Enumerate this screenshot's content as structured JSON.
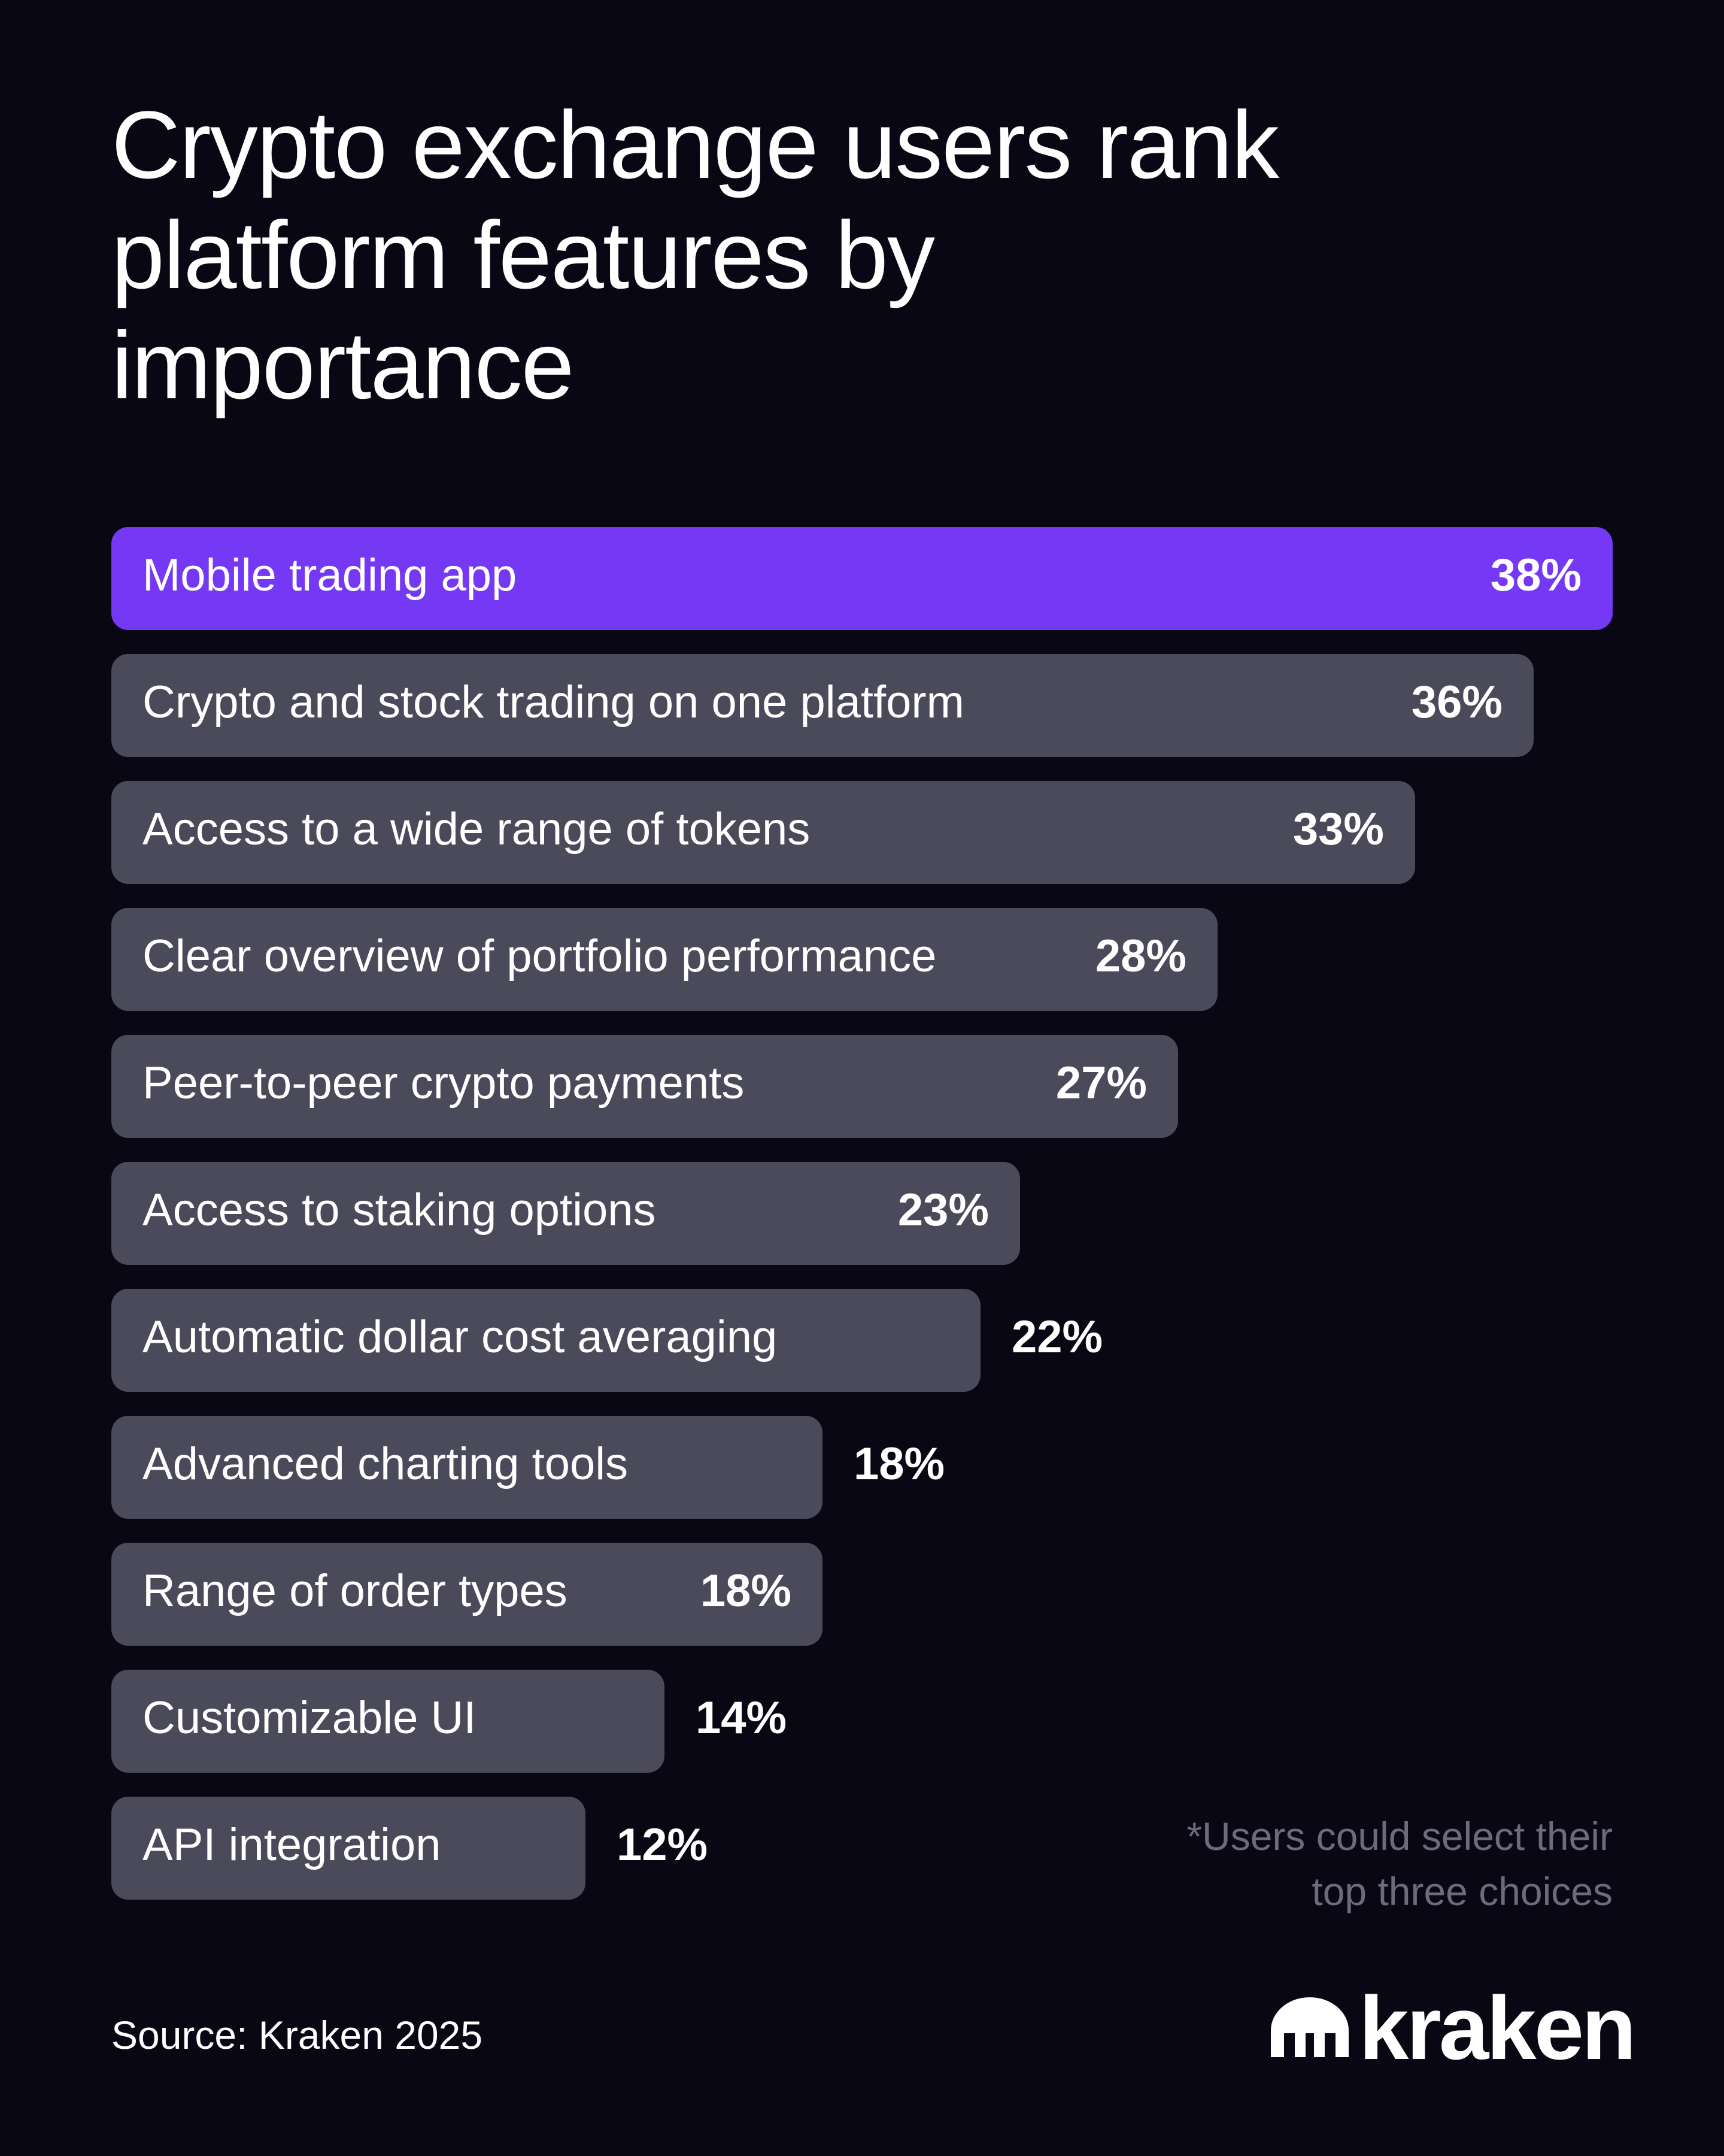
{
  "chart_data": {
    "type": "bar",
    "orientation": "horizontal",
    "title": "Crypto exchange users rank platform features by importance",
    "categories": [
      "Mobile trading app",
      "Crypto and stock trading on one platform",
      "Access to a wide range of tokens",
      "Clear overview of portfolio performance",
      "Peer-to-peer crypto payments",
      "Access to staking options",
      "Automatic dollar cost averaging",
      "Advanced charting tools",
      "Range of order types",
      "Customizable UI",
      "API integration"
    ],
    "values": [
      38,
      36,
      33,
      28,
      27,
      23,
      22,
      18,
      18,
      14,
      12
    ],
    "value_labels": [
      "38%",
      "36%",
      "33%",
      "28%",
      "27%",
      "23%",
      "22%",
      "18%",
      "18%",
      "14%",
      "12%"
    ],
    "colors": [
      "#7538f5",
      "#4a4a5a",
      "#4a4a5a",
      "#4a4a5a",
      "#4a4a5a",
      "#4a4a5a",
      "#4a4a5a",
      "#4a4a5a",
      "#4a4a5a",
      "#4a4a5a",
      "#4a4a5a"
    ],
    "footnote": "*Users could select their top three choices",
    "source": "Source: Kraken 2025"
  },
  "brand": "kraken"
}
